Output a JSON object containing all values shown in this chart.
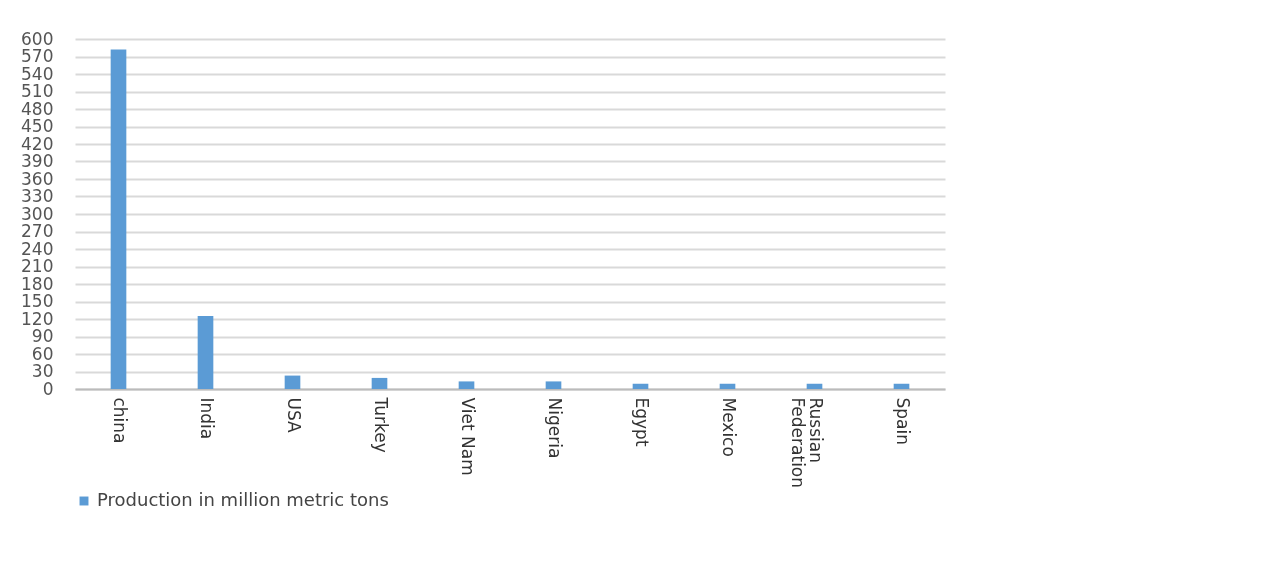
{
  "chart_data": {
    "type": "bar",
    "categories": [
      "china",
      "India",
      "USA",
      "Turkey",
      "Viet Nam",
      "Nigeria",
      "Egypt",
      "Mexico",
      "Russian Federation",
      "Spain"
    ],
    "series": [
      {
        "name": "Production in million metric tons",
        "color": "#5b9bd5",
        "values": [
          582,
          125,
          23,
          19,
          13,
          13,
          9,
          9,
          9,
          9
        ]
      }
    ],
    "ylim": [
      0,
      600
    ],
    "yticks": [
      0,
      30,
      60,
      90,
      120,
      150,
      180,
      210,
      240,
      270,
      300,
      330,
      360,
      390,
      420,
      450,
      480,
      510,
      540,
      570,
      600
    ],
    "grid": "y",
    "legend": "bottom"
  }
}
